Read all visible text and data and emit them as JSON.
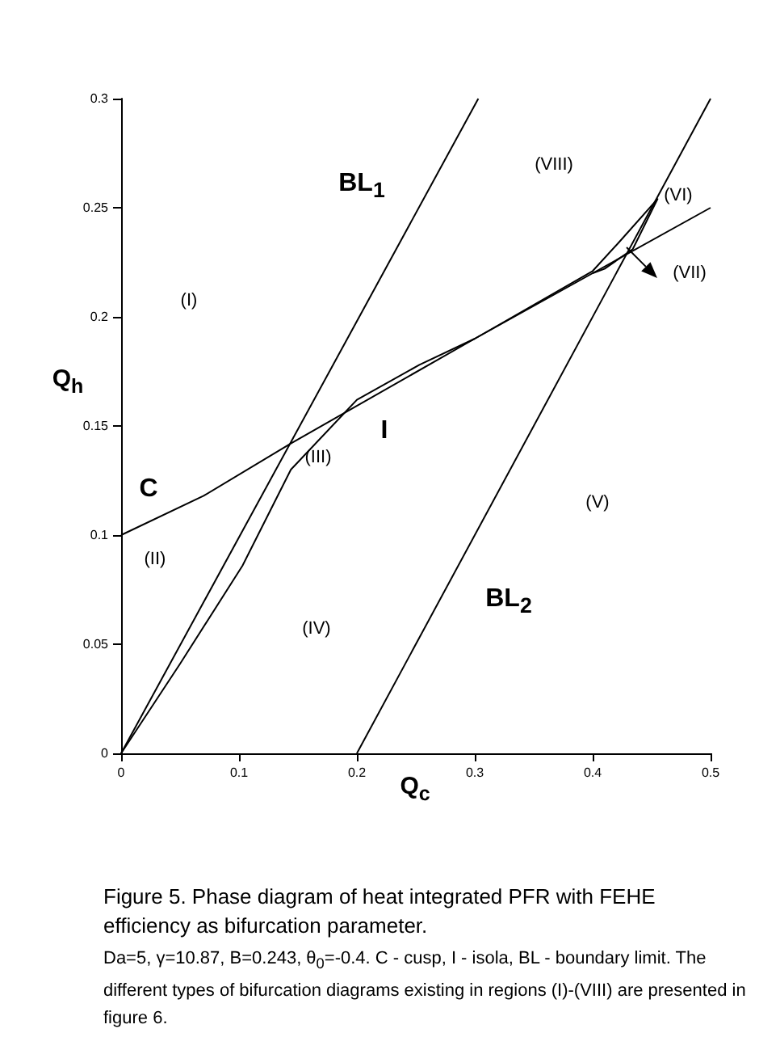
{
  "chart_data": {
    "type": "line",
    "xlabel": "Q$_{c}$",
    "ylabel": "Q$_{h}$",
    "xlim": [
      0,
      0.5
    ],
    "xticks": [
      0,
      0.1,
      0.2,
      0.3,
      0.4,
      0.5
    ],
    "ylim": [
      0,
      0.3
    ],
    "yticks": [
      0,
      0.05,
      0.1,
      0.15,
      0.2,
      0.25,
      0.3
    ],
    "grid": false,
    "marker": "none",
    "line_style": "solid",
    "series": [
      {
        "color": "#000000",
        "x": [
          0,
          0.303
        ],
        "values": [
          0,
          0.3
        ]
      },
      {
        "color": "#000000",
        "x": [
          0.2,
          0.5
        ],
        "values": [
          0,
          0.3
        ]
      },
      {
        "color": "#000000",
        "x": [
          0,
          0.07,
          0.144,
          0.3,
          0.4,
          0.5
        ],
        "values": [
          0.1,
          0.118,
          0.142,
          0.19,
          0.22,
          0.25
        ]
      },
      {
        "color": "#000000",
        "x": [
          0,
          0.05,
          0.103,
          0.144,
          0.2,
          0.253,
          0.3,
          0.4,
          0.422,
          0.455,
          0.434,
          0.41,
          0.4
        ],
        "values": [
          0,
          0.041,
          0.086,
          0.13,
          0.162,
          0.178,
          0.19,
          0.221,
          0.234,
          0.254,
          0.231,
          0.222,
          0.22
        ]
      }
    ],
    "annotations": [
      "(I)",
      "(II)",
      "(III)",
      "(IV)",
      "(V)",
      "(VI)",
      "(VII)",
      "(VIII)",
      "BL$_{1}$",
      "BL$_{2}$",
      "C",
      "I",
      "Figure 5. Phase diagram of heat integrated PFR with FEHE efficiency as bifurcation parameter.",
      "Da=5, γ=10.87, B=0.243, θ$_{0}$=-0.4.  C - cusp, I - isola, BL - boundary limit. The different types of bifurcation diagrams existing in regions (I)-(VIII) are presented in figure 6."
    ]
  }
}
